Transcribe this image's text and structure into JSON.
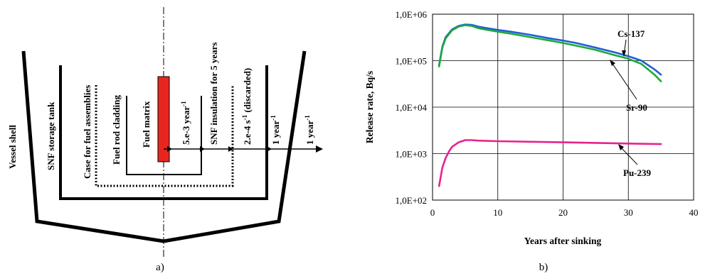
{
  "diagram": {
    "caption": "a)",
    "layers": {
      "vessel_shell": "Vessel shell",
      "storage_tank": "SNF storage tank",
      "case": "Case for fuel assemblies",
      "cladding": "Fuel rod cladding",
      "matrix": "Fuel matrix"
    },
    "rates": {
      "r1": "5.e-3 year",
      "r1_sup": "-1",
      "r2": "SNF insulation for 5 years",
      "r3": "2.e-4 s",
      "r3_sup": "-1",
      "r3_suffix": " (discarded)",
      "r4": "1 year",
      "r4_sup": "-1",
      "r5": "1 year",
      "r5_sup": "-1"
    },
    "colors": {
      "matrix_fill": "#e8261f"
    }
  },
  "chart_data": {
    "type": "line",
    "caption": "b)",
    "xlabel": "Years after sinking",
    "ylabel": "Release rate, Bq/s",
    "xlim": [
      0,
      40
    ],
    "ylim": [
      100,
      1000000
    ],
    "yscale": "log",
    "x_ticks": [
      "0",
      "10",
      "20",
      "30",
      "40"
    ],
    "y_ticks": [
      "1,0E+02",
      "1,0E+03",
      "1,0E+04",
      "1,0E+05",
      "1,0E+06"
    ],
    "grid": true,
    "series": [
      {
        "name": "Cs-137",
        "color": "#1f5fd6",
        "x": [
          1,
          1.5,
          2,
          3,
          4,
          5,
          6,
          7,
          8,
          10,
          12,
          15,
          18,
          20,
          22,
          25,
          28,
          30,
          32,
          34,
          35
        ],
        "values": [
          80000,
          200000,
          320000,
          470000,
          560000,
          600000,
          590000,
          540000,
          510000,
          460000,
          420000,
          360000,
          300000,
          270000,
          240000,
          190000,
          150000,
          125000,
          100000,
          65000,
          50000
        ]
      },
      {
        "name": "Sr-90",
        "color": "#1fa83a",
        "x": [
          1,
          1.5,
          2,
          3,
          4,
          5,
          6,
          7,
          8,
          10,
          12,
          15,
          18,
          20,
          22,
          25,
          28,
          30,
          32,
          34,
          35
        ],
        "values": [
          75000,
          190000,
          300000,
          450000,
          540000,
          580000,
          560000,
          500000,
          470000,
          420000,
          380000,
          320000,
          270000,
          240000,
          210000,
          170000,
          130000,
          110000,
          85000,
          50000,
          36000
        ]
      },
      {
        "name": "Pu-239",
        "color": "#e8228c",
        "x": [
          1,
          1.5,
          2,
          2.5,
          3,
          4,
          5,
          6,
          7,
          10,
          15,
          20,
          25,
          30,
          35
        ],
        "values": [
          200,
          500,
          800,
          1100,
          1400,
          1750,
          1950,
          1950,
          1900,
          1850,
          1800,
          1750,
          1700,
          1650,
          1600
        ]
      }
    ]
  }
}
